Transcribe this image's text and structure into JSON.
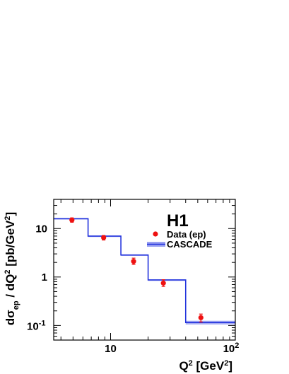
{
  "chart_data": {
    "type": "scatter",
    "title": "",
    "logo": "H1",
    "xlabel": "Q² [GeV²]",
    "ylabel": "dσ_ep / dQ² [pb/GeV²]",
    "xscale": "log",
    "yscale": "log",
    "xlim": [
      3.5,
      100
    ],
    "ylim": [
      0.05,
      40
    ],
    "x_ticks": [
      {
        "value": 10,
        "label": "10"
      },
      {
        "value": 100,
        "label": "10²"
      }
    ],
    "y_ticks": [
      {
        "value": 0.1,
        "label": "10⁻¹"
      },
      {
        "value": 1,
        "label": "1"
      },
      {
        "value": 10,
        "label": "10"
      }
    ],
    "legend": {
      "placement": "top-right",
      "entries": [
        {
          "label": "Data (ep)",
          "kind": "marker"
        },
        {
          "label": "CASCADE",
          "kind": "band"
        }
      ]
    },
    "series": [
      {
        "name": "Data (ep)",
        "kind": "points",
        "color": "#ee1111",
        "points": [
          {
            "x": 4.9,
            "y": 15.0,
            "y_low": 13.5,
            "y_high": 16.6
          },
          {
            "x": 8.8,
            "y": 6.5,
            "y_low": 5.8,
            "y_high": 7.2
          },
          {
            "x": 15.3,
            "y": 2.1,
            "y_low": 1.82,
            "y_high": 2.45
          },
          {
            "x": 26.5,
            "y": 0.75,
            "y_low": 0.64,
            "y_high": 0.88
          },
          {
            "x": 53.0,
            "y": 0.145,
            "y_low": 0.118,
            "y_high": 0.172
          }
        ]
      },
      {
        "name": "CASCADE",
        "kind": "histogram",
        "color": "#2233dd",
        "band_color": "#8890ee",
        "bins": [
          {
            "x_low": 3.5,
            "x_high": 6.6,
            "y": 16.0,
            "y_low": 15.6,
            "y_high": 16.4
          },
          {
            "x_low": 6.6,
            "x_high": 12.1,
            "y": 7.0,
            "y_low": 6.85,
            "y_high": 7.15
          },
          {
            "x_low": 12.1,
            "x_high": 20.0,
            "y": 2.85,
            "y_low": 2.78,
            "y_high": 2.92
          },
          {
            "x_low": 20.0,
            "x_high": 40.0,
            "y": 0.87,
            "y_low": 0.85,
            "y_high": 0.89
          },
          {
            "x_low": 40.0,
            "x_high": 100.0,
            "y": 0.115,
            "y_low": 0.105,
            "y_high": 0.125
          }
        ]
      }
    ]
  }
}
